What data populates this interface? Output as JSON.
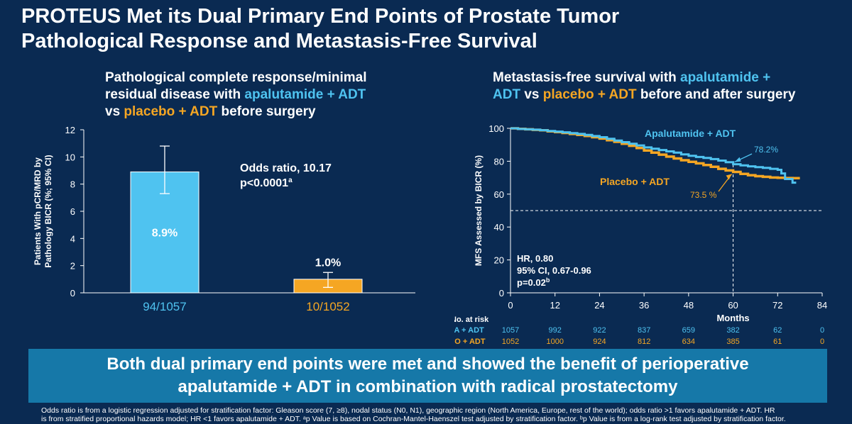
{
  "title": {
    "line1": "PROTEUS Met its Dual Primary End Points of Prostate Tumor",
    "line2": "Pathological Response and Metastasis-Free Survival"
  },
  "left_subtitle": {
    "line1": "Pathological complete response/minimal",
    "line2_pre": "residual disease with ",
    "line2_apa": "apalutamide + ADT",
    "line3_pre": "vs ",
    "line3_pbo": "placebo + ADT",
    "line3_post": " before surgery"
  },
  "right_subtitle": {
    "line1_pre": "Metastasis-free survival with ",
    "line1_apa": "apalutamide +",
    "line2_apa": "ADT",
    "line2_mid": " vs ",
    "line2_pbo": "placebo + ADT",
    "line2_post": " before and after surgery"
  },
  "chart_data": [
    {
      "type": "bar",
      "ylabel_line1": "Patients With pCR/MRD by",
      "ylabel_line2": "Pathology BICR (%; 95% CI)",
      "ylim": [
        0,
        12
      ],
      "yticks": [
        "0",
        "2",
        "4",
        "6",
        "8",
        "10",
        "12"
      ],
      "categories": [
        "94/1057",
        "10/1052"
      ],
      "values": [
        8.9,
        1.0
      ],
      "ci_low": [
        7.3,
        0.4
      ],
      "ci_high": [
        10.8,
        1.5
      ],
      "value_labels": [
        "8.9%",
        "1.0%"
      ],
      "colors": [
        "#4fc3f0",
        "#f5a623"
      ],
      "annotation_line1": "Odds ratio, 10.17",
      "annotation_line2_main": "p<0.0001",
      "annotation_line2_sup": "a"
    },
    {
      "type": "line",
      "ylabel": "MFS Assessed by BICR (%)",
      "xlabel": "Months",
      "xlim": [
        0,
        84
      ],
      "ylim": [
        0,
        100
      ],
      "xticks": [
        "0",
        "12",
        "24",
        "36",
        "48",
        "60",
        "72",
        "84"
      ],
      "yticks": [
        "0",
        "20",
        "40",
        "60",
        "80",
        "100"
      ],
      "reference_y": 50,
      "reference_x": 60,
      "series": [
        {
          "name": "Apalutamide + ADT",
          "color": "#4fc3f0",
          "x": [
            0,
            2,
            4,
            6,
            8,
            10,
            12,
            14,
            16,
            18,
            20,
            22,
            24,
            26,
            28,
            30,
            32,
            34,
            36,
            38,
            40,
            42,
            44,
            46,
            48,
            50,
            52,
            54,
            56,
            58,
            60,
            62,
            64,
            66,
            68,
            70,
            72,
            73,
            74,
            75,
            76,
            77
          ],
          "y": [
            100,
            99.6,
            99.4,
            99.2,
            98.9,
            98.4,
            98.0,
            97.6,
            97.1,
            96.6,
            96.0,
            95.3,
            94.6,
            93.6,
            92.6,
            91.6,
            90.6,
            89.6,
            88.4,
            87.6,
            86.8,
            86.0,
            85.2,
            84.2,
            83.3,
            82.6,
            82.0,
            81.3,
            80.4,
            79.4,
            78.2,
            77.5,
            76.9,
            76.4,
            76.0,
            75.4,
            74.8,
            72.6,
            69.2,
            69.2,
            67.0,
            67.0
          ]
        },
        {
          "name": "Placebo + ADT",
          "color": "#f5a623",
          "x": [
            0,
            2,
            4,
            6,
            8,
            10,
            12,
            14,
            16,
            18,
            20,
            22,
            24,
            26,
            28,
            30,
            32,
            34,
            36,
            38,
            40,
            42,
            44,
            46,
            48,
            50,
            52,
            54,
            56,
            58,
            60,
            62,
            64,
            66,
            68,
            70,
            72,
            74,
            76,
            78
          ],
          "y": [
            100,
            99.7,
            99.4,
            99.1,
            98.8,
            98.2,
            97.7,
            97.2,
            96.6,
            96.0,
            95.4,
            94.6,
            93.8,
            92.8,
            91.8,
            90.6,
            89.4,
            88.0,
            86.5,
            85.2,
            84.0,
            82.8,
            81.7,
            80.6,
            79.6,
            78.7,
            77.7,
            76.6,
            75.4,
            74.4,
            73.5,
            72.3,
            71.5,
            70.9,
            70.5,
            70.1,
            69.9,
            69.8,
            69.7,
            69.7
          ]
        }
      ],
      "annotations": {
        "apa_label": "Apalutamide + ADT",
        "pbo_label": "Placebo + ADT",
        "apa_value": "78.2%",
        "pbo_value": "73.5 %",
        "hr": "HR, 0.80",
        "ci": "95% CI, 0.67-0.96",
        "p_main": "p=0.02",
        "p_sup": "b"
      },
      "at_risk": {
        "title": "No. at risk",
        "rows": [
          {
            "label": "APA + ADT",
            "values": [
              "1057",
              "992",
              "922",
              "837",
              "659",
              "382",
              "62",
              "0"
            ]
          },
          {
            "label": "PBO + ADT",
            "values": [
              "1052",
              "1000",
              "924",
              "812",
              "634",
              "385",
              "61",
              "0"
            ]
          }
        ]
      }
    }
  ],
  "banner": {
    "line1": "Both dual primary end points were met and showed the benefit of perioperative",
    "line2": "apalutamide + ADT in combination with radical prostatectomy"
  },
  "footnote": {
    "line1": "Odds ratio is from a logistic regression adjusted for stratification factor: Gleason score (7, ≥8), nodal status (N0, N1), geographic region (North America, Europe, rest of the world); odds ratio >1 favors apalutamide + ADT. HR",
    "line2": "is from stratified proportional hazards model; HR <1 favors apalutamide + ADT. ᵃp Value is based on Cochran-Mantel-Haenszel test adjusted by stratification factor. ᵇp Value is from a log-rank test adjusted by stratification factor."
  }
}
